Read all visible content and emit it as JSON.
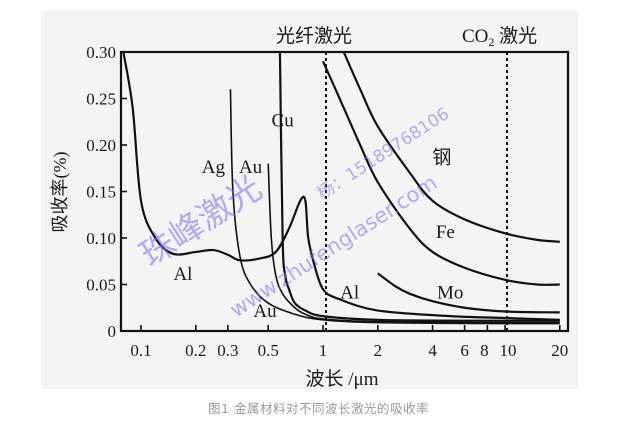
{
  "figure": {
    "caption": "图1 金属材料对不同波长激光的吸收率",
    "annotations": {
      "fiber_laser": "光纤激光",
      "co2_laser_prefix": "CO",
      "co2_laser_sub": "2",
      "co2_laser_suffix": " 激光"
    },
    "watermark": {
      "brand": "珠峰激光",
      "phone": "杨：15189768106",
      "url": "www.zhufenglaser.com"
    },
    "colors": {
      "panel_bg": "#f4f4f4",
      "line": "#111111",
      "watermark": "#7b6cf0",
      "caption": "#9a9a9a"
    }
  },
  "chart_data": {
    "type": "line",
    "title": "",
    "xlabel": "波长 /μm",
    "ylabel": "吸收率(%)",
    "xscale": "log",
    "xlim": [
      0.08,
      22
    ],
    "ylim": [
      0,
      0.3
    ],
    "x_ticks": [
      "0.1",
      "0.2",
      "0.3",
      "0.5",
      "1",
      "2",
      "4",
      "6",
      "8",
      "10",
      "20"
    ],
    "y_ticks": [
      "0",
      "0.05",
      "0.10",
      "0.15",
      "0.20",
      "0.25",
      "0.30"
    ],
    "grid": false,
    "legend": "inline labels",
    "vertical_markers": [
      {
        "label": "光纤激光",
        "x": 1.06,
        "style": "dotted"
      },
      {
        "label": "CO2 激光",
        "x": 10.6,
        "style": "dotted"
      }
    ],
    "series": [
      {
        "name": "Al",
        "x": [
          0.08,
          0.09,
          0.1,
          0.12,
          0.15,
          0.2,
          0.25,
          0.3,
          0.35,
          0.45,
          0.55,
          0.65,
          0.75,
          0.8,
          0.83,
          0.9,
          1.0,
          1.2,
          2.0,
          5.0,
          10.0,
          20.0
        ],
        "y": [
          0.3,
          0.24,
          0.14,
          0.1,
          0.083,
          0.085,
          0.087,
          0.082,
          0.076,
          0.078,
          0.085,
          0.11,
          0.14,
          0.14,
          0.1,
          0.07,
          0.045,
          0.035,
          0.022,
          0.016,
          0.014,
          0.012
        ]
      },
      {
        "name": "Ag",
        "x": [
          0.31,
          0.32,
          0.35,
          0.4,
          0.5,
          0.7,
          1.0,
          2.0,
          10.0,
          20.0
        ],
        "y": [
          0.26,
          0.15,
          0.08,
          0.05,
          0.03,
          0.018,
          0.012,
          0.009,
          0.008,
          0.008
        ]
      },
      {
        "name": "Au",
        "x": [
          0.5,
          0.52,
          0.55,
          0.6,
          0.7,
          0.8,
          1.0,
          2.0,
          10.0,
          20.0
        ],
        "y": [
          0.18,
          0.1,
          0.06,
          0.04,
          0.025,
          0.018,
          0.013,
          0.01,
          0.009,
          0.009
        ]
      },
      {
        "name": "Cu",
        "x": [
          0.58,
          0.6,
          0.62,
          0.65,
          0.7,
          0.8,
          1.0,
          2.0,
          10.0,
          20.0
        ],
        "y": [
          0.3,
          0.1,
          0.06,
          0.045,
          0.03,
          0.022,
          0.016,
          0.012,
          0.011,
          0.011
        ]
      },
      {
        "name": "钢",
        "x": [
          1.3,
          1.6,
          2.0,
          3.0,
          4.0,
          6.0,
          10.0,
          15.0,
          20.0
        ],
        "y": [
          0.3,
          0.26,
          0.22,
          0.17,
          0.14,
          0.12,
          0.105,
          0.098,
          0.096
        ]
      },
      {
        "name": "Fe",
        "x": [
          1.0,
          1.3,
          1.6,
          2.0,
          3.0,
          4.0,
          6.0,
          10.0,
          15.0,
          20.0
        ],
        "y": [
          0.29,
          0.24,
          0.2,
          0.16,
          0.11,
          0.085,
          0.068,
          0.055,
          0.05,
          0.05
        ]
      },
      {
        "name": "Mo",
        "x": [
          2.0,
          2.5,
          3.0,
          4.0,
          6.0,
          10.0,
          20.0
        ],
        "y": [
          0.062,
          0.048,
          0.04,
          0.032,
          0.025,
          0.021,
          0.02
        ]
      }
    ],
    "labels": [
      {
        "text": "Al",
        "x": 0.17,
        "y": 0.055
      },
      {
        "text": "Ag",
        "x": 0.25,
        "y": 0.17
      },
      {
        "text": "Au",
        "x": 0.4,
        "y": 0.17
      },
      {
        "text": "Cu",
        "x": 0.6,
        "y": 0.22
      },
      {
        "text": "Au",
        "x": 0.48,
        "y": 0.015
      },
      {
        "text": "Al",
        "x": 1.4,
        "y": 0.035
      },
      {
        "text": "钢",
        "x": 4.5,
        "y": 0.18
      },
      {
        "text": "Fe",
        "x": 4.7,
        "y": 0.1
      },
      {
        "text": "Mo",
        "x": 5.0,
        "y": 0.035
      }
    ]
  }
}
